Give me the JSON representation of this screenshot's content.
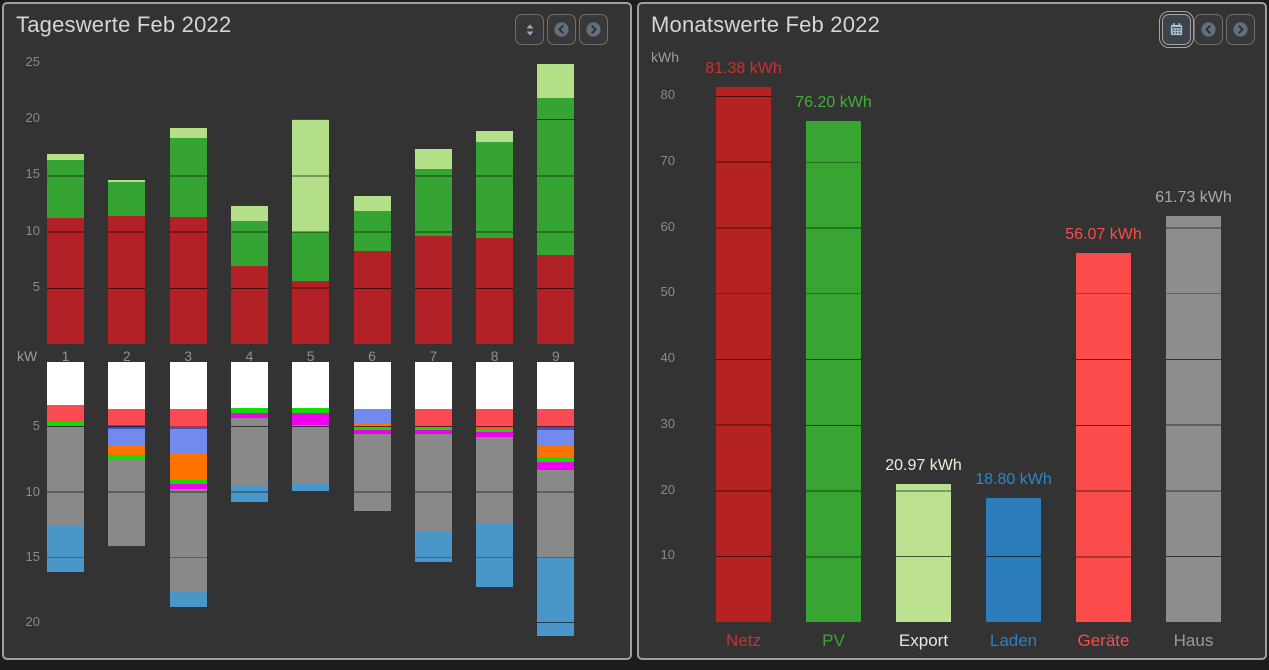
{
  "left_panel": {
    "title": "Tageswerte Feb 2022",
    "toolbar": {
      "sort_icon": "up-down-arrows",
      "prev_icon": "chevron-left-circle",
      "next_icon": "chevron-right-circle"
    }
  },
  "right_panel": {
    "title": "Monatswerte Feb 2022",
    "toolbar": {
      "calendar_icon": "calendar",
      "calendar_active": true,
      "prev_icon": "chevron-left-circle",
      "next_icon": "chevron-right-circle"
    }
  },
  "chart_data": [
    {
      "type": "bar",
      "subtype": "stacked-dual-direction",
      "title": "Tageswerte Feb 2022",
      "unit": "kW",
      "categories": [
        "1",
        "2",
        "3",
        "4",
        "5",
        "6",
        "7",
        "8",
        "9"
      ],
      "upper": {
        "direction": "up",
        "axis_ticks": [
          5,
          10,
          15,
          20,
          25
        ],
        "ylim": [
          0,
          25
        ],
        "grid_step": 5,
        "series": [
          {
            "name": "netz-bezug",
            "color": "#b12126",
            "values": [
              11.2,
              11.4,
              11.3,
              6.9,
              5.6,
              8.3,
              9.6,
              9.4,
              7.9
            ]
          },
          {
            "name": "pv-ertrag",
            "color": "#35a432",
            "values": [
              5.2,
              3.0,
              7.0,
              4.0,
              4.4,
              3.5,
              6.0,
              8.6,
              14.0
            ]
          },
          {
            "name": "export",
            "color": "#b4e08a",
            "values": [
              0.5,
              0.2,
              0.9,
              1.4,
              10.0,
              1.4,
              1.7,
              0.9,
              3.0
            ]
          }
        ]
      },
      "lower": {
        "direction": "down",
        "axis_ticks": [
          5,
          10,
          15,
          20
        ],
        "ylim": [
          0,
          25
        ],
        "grid_step": 5,
        "series": [
          {
            "name": "weiss",
            "color": "#ffffff",
            "values": [
              3.3,
              3.6,
              3.6,
              3.5,
              3.5,
              3.6,
              3.6,
              3.6,
              3.6
            ]
          },
          {
            "name": "hellrot",
            "color": "#fb4b52",
            "values": [
              1.3,
              1.25,
              1.4,
              0,
              0,
              0,
              1.4,
              1.5,
              1.4
            ]
          },
          {
            "name": "dunkelblau",
            "color": "#3d55c0",
            "values": [
              0,
              0.25,
              0.15,
              0,
              0,
              0,
              0,
              0,
              0.2
            ]
          },
          {
            "name": "violettblau",
            "color": "#7289ee",
            "values": [
              0,
              1.3,
              1.8,
              0,
              0,
              1.1,
              0,
              0,
              1.2
            ]
          },
          {
            "name": "orange",
            "color": "#fe7300",
            "values": [
              0,
              0.7,
              2.1,
              0,
              0,
              0.3,
              0,
              0,
              0.9
            ]
          },
          {
            "name": "hellgruen",
            "color": "#13dc02",
            "values": [
              0.3,
              0.3,
              0.3,
              0.4,
              0.4,
              0.2,
              0.2,
              0.3,
              0.4
            ]
          },
          {
            "name": "magenta",
            "color": "#ee00ee",
            "values": [
              0,
              0,
              0.4,
              0.4,
              0.9,
              0.3,
              0.3,
              0.35,
              0.6
            ]
          },
          {
            "name": "grau",
            "color": "#898989",
            "values": [
              7.7,
              6.7,
              7.9,
              5.1,
              4.5,
              5.9,
              7.5,
              6.6,
              6.7
            ]
          },
          {
            "name": "ladenblau",
            "color": "#4a96c8",
            "values": [
              3.5,
              0,
              1.1,
              1.3,
              0.6,
              0,
              2.3,
              4.9,
              6.0
            ]
          }
        ]
      }
    },
    {
      "type": "bar",
      "title": "Monatswerte Feb 2022",
      "unit": "kWh",
      "categories": [
        "Netz",
        "PV",
        "Export",
        "Laden",
        "Geräte",
        "Haus"
      ],
      "values": [
        81.38,
        76.2,
        20.97,
        18.8,
        56.07,
        61.73
      ],
      "value_labels": [
        "81.38 kWh",
        "76.20 kWh",
        "20.97 kWh",
        "18.80 kWh",
        "56.07 kWh",
        "61.73 kWh"
      ],
      "bar_colors": [
        "#b52222",
        "#38a532",
        "#bce291",
        "#2b7cba",
        "#fb4b4b",
        "#8d8d8d"
      ],
      "value_label_colors": [
        "#cf2f2f",
        "#3db335",
        "#e9edd6",
        "#2e86c8",
        "#fb4b4b",
        "#a9a9a9"
      ],
      "category_label_colors": [
        "#c43434",
        "#3aa62f",
        "#e8e8e8",
        "#2e7fbd",
        "#fb4b4b",
        "#9a9a9a"
      ],
      "axis_ticks": [
        10,
        20,
        30,
        40,
        50,
        60,
        70,
        80
      ],
      "ylim": [
        0,
        85
      ],
      "grid_step": 10,
      "legend_position": "none"
    }
  ]
}
